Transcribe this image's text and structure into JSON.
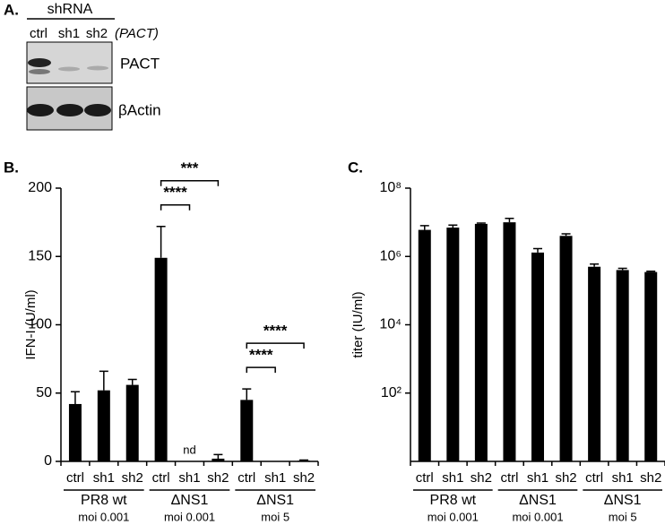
{
  "blot": {
    "label": "A.",
    "header": "shRNA",
    "lanes": [
      "ctrl",
      "sh1",
      "sh2"
    ],
    "gene": "(PACT)",
    "rows": [
      "PACT",
      "βActin"
    ]
  },
  "chart_data": [
    {
      "type": "bar",
      "label": "B.",
      "ylabel": "IFN-I (U/ml)",
      "color": "#000000",
      "log": false,
      "categories": [
        "ctrl",
        "sh1",
        "sh2",
        "ctrl",
        "sh1",
        "sh2",
        "ctrl",
        "sh1",
        "sh2"
      ],
      "values": [
        42,
        52,
        56,
        149,
        0,
        2,
        45,
        0,
        0.5
      ],
      "errors": [
        9,
        14,
        4,
        23,
        0,
        3,
        8,
        0,
        0.5
      ],
      "groups": [
        {
          "name": "PR8 wt",
          "sub": "moi 0.001"
        },
        {
          "name": "ΔNS1",
          "sub": "moi 0.001"
        },
        {
          "name": "ΔNS1",
          "sub": "moi 5"
        }
      ],
      "ylim": [
        0,
        200
      ],
      "yticks": [
        0,
        50,
        100,
        150,
        200
      ],
      "annotations": [
        {
          "text": "nd",
          "index": 4
        }
      ],
      "significance": [
        {
          "text": "***",
          "from": 3,
          "to": 5
        },
        {
          "text": "****",
          "from": 3,
          "to": 4
        },
        {
          "text": "****",
          "from": 6,
          "to": 8
        },
        {
          "text": "****",
          "from": 6,
          "to": 7
        }
      ]
    },
    {
      "type": "bar",
      "label": "C.",
      "ylabel": "titer (IU/ml)",
      "color": "#000000",
      "log": true,
      "categories": [
        "ctrl",
        "sh1",
        "sh2",
        "ctrl",
        "sh1",
        "sh2",
        "ctrl",
        "sh1",
        "sh2"
      ],
      "values": [
        6000000,
        7000000,
        9000000,
        10000000,
        1300000,
        4000000,
        500000,
        400000,
        350000
      ],
      "errors": [
        2000000,
        1300000,
        500000,
        3000000,
        400000,
        600000,
        100000,
        50000,
        20000
      ],
      "groups": [
        {
          "name": "PR8 wt",
          "sub": "moi 0.001"
        },
        {
          "name": "ΔNS1",
          "sub": "moi 0.001"
        },
        {
          "name": "ΔNS1",
          "sub": "moi 5"
        }
      ],
      "ylim": [
        1,
        100000000
      ],
      "yticks": [
        {
          "value": 100,
          "label": "10²"
        },
        {
          "value": 10000,
          "label": "10⁴"
        },
        {
          "value": 1000000,
          "label": "10⁶"
        },
        {
          "value": 100000000,
          "label": "10⁸"
        }
      ],
      "annotations": [],
      "significance": []
    }
  ]
}
